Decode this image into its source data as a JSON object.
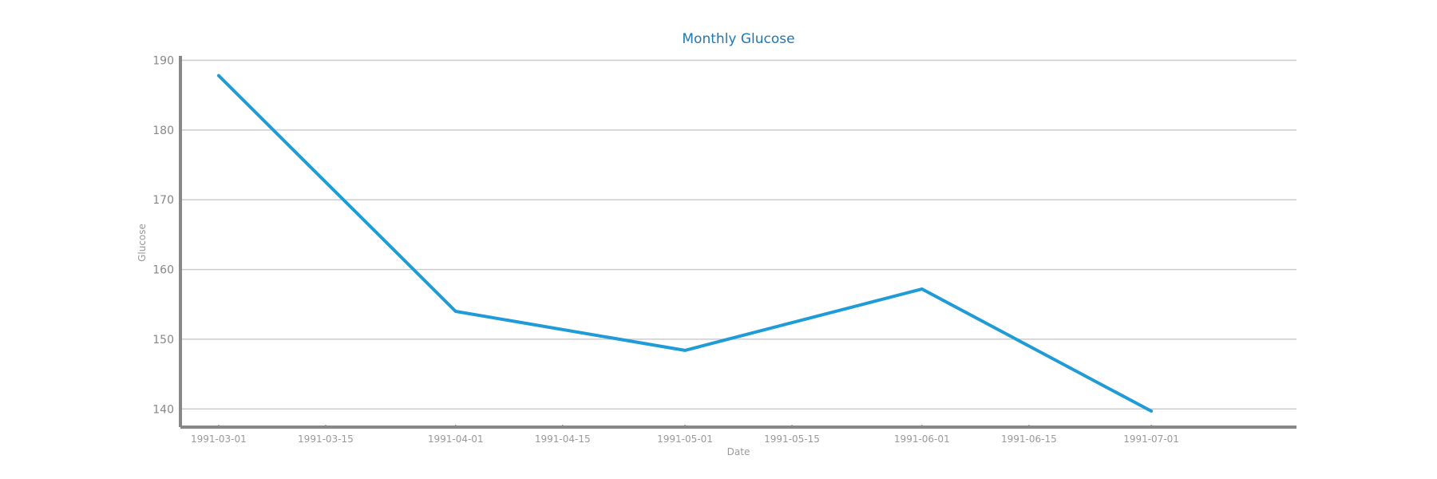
{
  "chart_data": {
    "type": "line",
    "title": "Monthly Glucose",
    "xlabel": "Date",
    "ylabel": "Glucose",
    "x": [
      "1991-03-01",
      "1991-04-01",
      "1991-05-01",
      "1991-06-01",
      "1991-07-01"
    ],
    "series": [
      {
        "values": [
          187.8,
          154.0,
          148.4,
          157.2,
          139.7
        ]
      }
    ],
    "xlim": [
      "1991-02-24",
      "1991-07-20"
    ],
    "ylim": [
      137.4,
      190.4
    ],
    "x_ticks": [
      "1991-03-01",
      "1991-03-15",
      "1991-04-01",
      "1991-04-15",
      "1991-05-01",
      "1991-05-15",
      "1991-06-01",
      "1991-06-15",
      "1991-07-01"
    ],
    "y_ticks": [
      140,
      150,
      160,
      170,
      180,
      190
    ],
    "grid": "horizontal",
    "legend": "none",
    "colors": {
      "line": "#1f9bd7",
      "title": "#1f77b4",
      "grid": "#cccccc",
      "axis": "#888888",
      "tick_text": "#999999"
    }
  }
}
